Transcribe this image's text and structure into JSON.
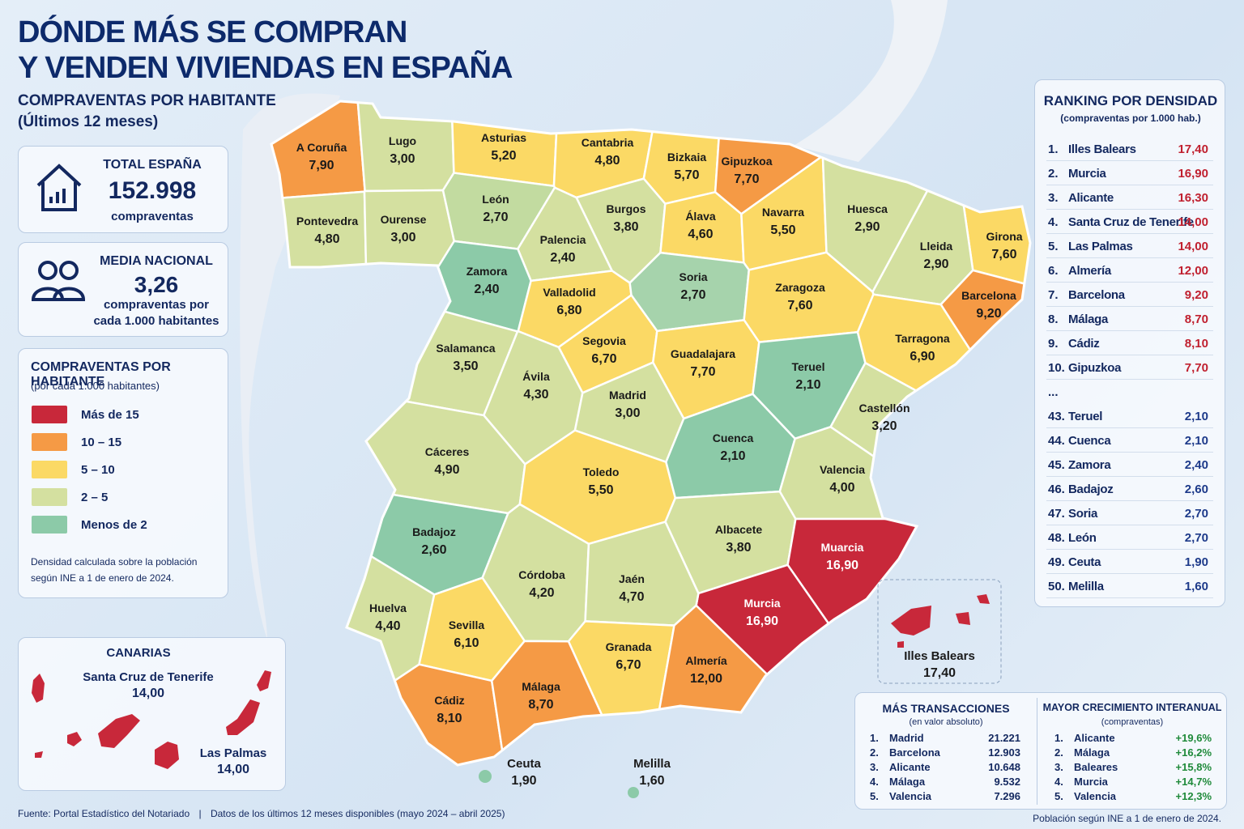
{
  "header": {
    "title_line1": "DÓNDE MÁS SE COMPRAN",
    "title_line2": "Y VENDEN VIVIENDAS EN ESPAÑA",
    "subtitle": "COMPRAVENTAS POR HABITANTE",
    "subtitle2": "(Últimos 12 meses)"
  },
  "total": {
    "label": "TOTAL ESPAÑA",
    "value": "152.998",
    "unit": "compraventas"
  },
  "media": {
    "label": "MEDIA NACIONAL",
    "value": "3,26",
    "unit_line1": "compraventas por",
    "unit_line2": "cada 1.000 habitantes"
  },
  "legend": {
    "title": "COMPRAVENTAS POR HABITANTE",
    "subtitle": "(por cada 1.000 habitantes)",
    "items": [
      {
        "label": "Más de 15",
        "color": "#c8283a"
      },
      {
        "label": "10 – 15",
        "color": "#f59a45"
      },
      {
        "label": "5 – 10",
        "color": "#fbd965"
      },
      {
        "label": "2 – 5",
        "color": "#d4e0a0"
      },
      {
        "label": "Menos de 2",
        "color": "#8ccaa8"
      }
    ],
    "note_line1": "Densidad calculada sobre la población",
    "note_line2": "según INE a 1 de enero de 2024."
  },
  "provinces": [
    {
      "name": "A Coruña",
      "value": "7,90",
      "color": "#f59a45"
    },
    {
      "name": "Lugo",
      "value": "3,00",
      "color": "#d4e0a0"
    },
    {
      "name": "Asturias",
      "value": "5,20",
      "color": "#fbd965"
    },
    {
      "name": "Cantabria",
      "value": "4,80",
      "color": "#fbd965"
    },
    {
      "name": "Bizkaia",
      "value": "5,70",
      "color": "#fbd965"
    },
    {
      "name": "Gipuzkoa",
      "value": "7,70",
      "color": "#f59a45"
    },
    {
      "name": "Pontevedra",
      "value": "4,80",
      "color": "#d4e0a0"
    },
    {
      "name": "Ourense",
      "value": "3,00",
      "color": "#d4e0a0"
    },
    {
      "name": "León",
      "value": "2,70",
      "color": "#c2dba0"
    },
    {
      "name": "Burgos",
      "value": "3,80",
      "color": "#d4e0a0"
    },
    {
      "name": "Álava",
      "value": "4,60",
      "color": "#fbd965"
    },
    {
      "name": "Navarra",
      "value": "5,50",
      "color": "#fbd965"
    },
    {
      "name": "Huesca",
      "value": "2,90",
      "color": "#d4e0a0"
    },
    {
      "name": "Girona",
      "value": "7,60",
      "color": "#fbd965"
    },
    {
      "name": "Lleida",
      "value": "2,90",
      "color": "#d4e0a0"
    },
    {
      "name": "Palencia",
      "value": "2,40",
      "color": "#d4e0a0"
    },
    {
      "name": "Zamora",
      "value": "2,40",
      "color": "#8ccaa8"
    },
    {
      "name": "Valladolid",
      "value": "6,80",
      "color": "#fbd965"
    },
    {
      "name": "Soria",
      "value": "2,70",
      "color": "#a6d3ac"
    },
    {
      "name": "Zaragoza",
      "value": "7,60",
      "color": "#fbd965"
    },
    {
      "name": "Barcelona",
      "value": "9,20",
      "color": "#f59a45"
    },
    {
      "name": "Salamanca",
      "value": "3,50",
      "color": "#d4e0a0"
    },
    {
      "name": "Segovia",
      "value": "6,70",
      "color": "#fbd965"
    },
    {
      "name": "Guadalajara",
      "value": "7,70",
      "color": "#fbd965"
    },
    {
      "name": "Teruel",
      "value": "2,10",
      "color": "#8ccaa8"
    },
    {
      "name": "Tarragona",
      "value": "6,90",
      "color": "#fbd965"
    },
    {
      "name": "Ávila",
      "value": "4,30",
      "color": "#d4e0a0"
    },
    {
      "name": "Madrid",
      "value": "3,00",
      "color": "#d4e0a0"
    },
    {
      "name": "Castellón",
      "value": "3,20",
      "color": "#d4e0a0"
    },
    {
      "name": "Cáceres",
      "value": "4,90",
      "color": "#d4e0a0"
    },
    {
      "name": "Toledo",
      "value": "5,50",
      "color": "#fbd965"
    },
    {
      "name": "Cuenca",
      "value": "2,10",
      "color": "#8ccaa8"
    },
    {
      "name": "Valencia",
      "value": "4,00",
      "color": "#d4e0a0"
    },
    {
      "name": "Badajoz",
      "value": "2,60",
      "color": "#8ccaa8"
    },
    {
      "name": "Albacete",
      "value": "3,80",
      "color": "#d4e0a0"
    },
    {
      "name": "Muarcia",
      "value": "16,90",
      "color": "#c8283a"
    },
    {
      "name": "Murcia",
      "value": "16,90",
      "color": "#c8283a"
    },
    {
      "name": "Córdoba",
      "value": "4,20",
      "color": "#d4e0a0"
    },
    {
      "name": "Jaén",
      "value": "4,70",
      "color": "#d4e0a0"
    },
    {
      "name": "Huelva",
      "value": "4,40",
      "color": "#d4e0a0"
    },
    {
      "name": "Sevilla",
      "value": "6,10",
      "color": "#fbd965"
    },
    {
      "name": "Granada",
      "value": "6,70",
      "color": "#fbd965"
    },
    {
      "name": "Almería",
      "value": "12,00",
      "color": "#f59a45"
    },
    {
      "name": "Cádiz",
      "value": "8,10",
      "color": "#f59a45"
    },
    {
      "name": "Málaga",
      "value": "8,70",
      "color": "#f59a45"
    }
  ],
  "baleares": {
    "name": "Illes Balears",
    "value": "17,40"
  },
  "ceuta": {
    "name": "Ceuta",
    "value": "1,90",
    "color": "#8ccaa8"
  },
  "melilla": {
    "name": "Melilla",
    "value": "1,60",
    "color": "#8ccaa8"
  },
  "canarias": {
    "title": "CANARIAS",
    "items": [
      {
        "name": "Santa Cruz de Tenerife",
        "value": "14,00"
      },
      {
        "name": "Las Palmas",
        "value": "14,00"
      }
    ]
  },
  "ranking": {
    "title": "RANKING POR DENSIDAD",
    "subtitle": "(compraventas por 1.000 hab.)",
    "top_color": "#c0202f",
    "bottom_color": "#1d3a8a",
    "top": [
      [
        "1.",
        "Illes Balears",
        "17,40"
      ],
      [
        "2.",
        "Murcia",
        "16,90"
      ],
      [
        "3.",
        "Alicante",
        "16,30"
      ],
      [
        "4.",
        "Santa Cruz de Tenerife",
        "14,00"
      ],
      [
        "5.",
        "Las Palmas",
        "14,00"
      ],
      [
        "6.",
        "Almería",
        "12,00"
      ],
      [
        "7.",
        "Barcelona",
        "9,20"
      ],
      [
        "8.",
        "Málaga",
        "8,70"
      ],
      [
        "9.",
        "Cádiz",
        "8,10"
      ],
      [
        "10.",
        "Gipuzkoa",
        "7,70"
      ]
    ],
    "ellipsis": "...",
    "bottom": [
      [
        "43.",
        "Teruel",
        "2,10"
      ],
      [
        "44.",
        "Cuenca",
        "2,10"
      ],
      [
        "45.",
        "Zamora",
        "2,40"
      ],
      [
        "46.",
        "Badajoz",
        "2,60"
      ],
      [
        "47.",
        "Soria",
        "2,70"
      ],
      [
        "48.",
        "León",
        "2,70"
      ],
      [
        "49.",
        "Ceuta",
        "1,90"
      ],
      [
        "50.",
        "Melilla",
        "1,60"
      ]
    ]
  },
  "transactions": {
    "title": "MÁS TRANSACCIONES",
    "subtitle": "(en valor absoluto)",
    "rows": [
      [
        "1.",
        "Madrid",
        "21.221"
      ],
      [
        "2.",
        "Barcelona",
        "12.903"
      ],
      [
        "3.",
        "Alicante",
        "10.648"
      ],
      [
        "4.",
        "Málaga",
        "9.532"
      ],
      [
        "5.",
        "Valencia",
        "7.296"
      ]
    ]
  },
  "growth": {
    "title": "MAYOR CRECIMIENTO INTERANUAL",
    "subtitle": "(compraventas)",
    "color": "#1f8a3a",
    "rows": [
      [
        "1.",
        "Alicante",
        "+19,6%"
      ],
      [
        "2.",
        "Málaga",
        "+16,2%"
      ],
      [
        "3.",
        "Baleares",
        "+15,8%"
      ],
      [
        "4.",
        "Murcia",
        "+14,7%"
      ],
      [
        "5.",
        "Valencia",
        "+12,3%"
      ]
    ]
  },
  "footer": {
    "source": "Fuente: Portal Estadístico del Notariado",
    "sep": "|",
    "period": "Datos de los últimos 12 meses disponibles (mayo 2024 – abril 2025)",
    "note": "Población según INE a 1 de enero de 2024."
  }
}
